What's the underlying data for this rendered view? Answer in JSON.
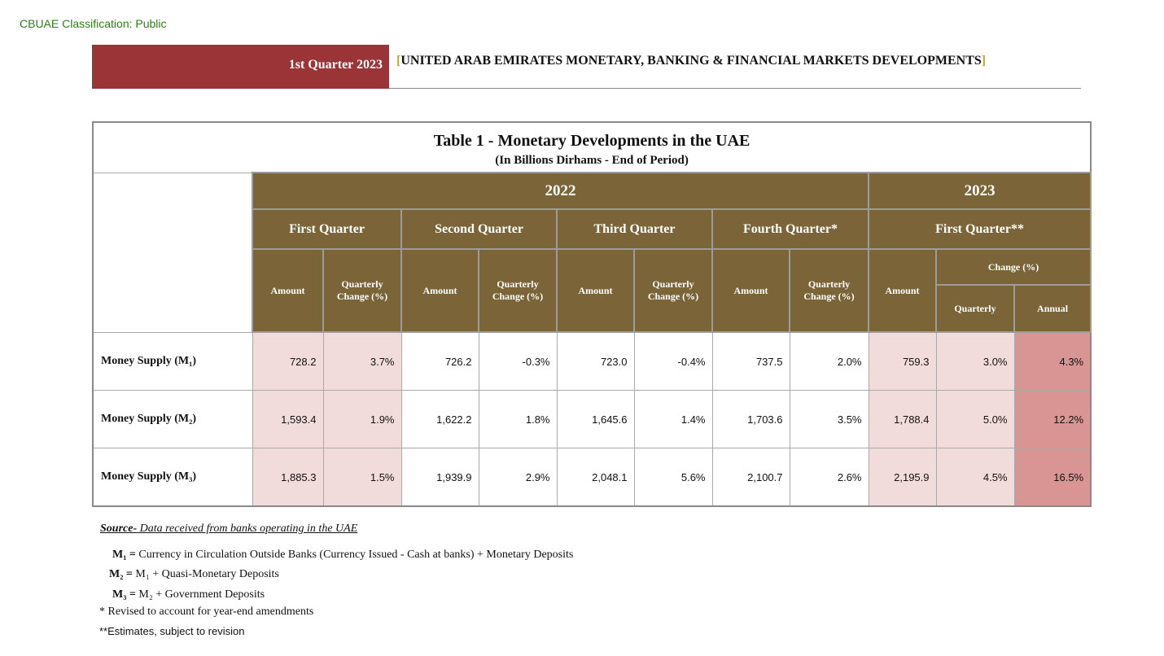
{
  "classification": "CBUAE Classification: Public",
  "header": {
    "quarter": "1st Quarter 2023",
    "bracket_open": "[",
    "title": "UNITED ARAB EMIRATES MONETARY, BANKING & FINANCIAL MARKETS DEVELOPMENTS",
    "bracket_close": "]"
  },
  "colors": {
    "band": "#9a3437",
    "header_fill": "#7b6538",
    "pink": "#f2dcdb",
    "red": "#d99594",
    "classification": "#2e7d1a"
  },
  "table": {
    "title": "Table 1 - Monetary Developments in the UAE",
    "subtitle": "(In Billions Dirhams - End of Period)",
    "years": [
      "2022",
      "2023"
    ],
    "quarters": [
      "First Quarter",
      "Second Quarter",
      "Third Quarter",
      "Fourth Quarter*",
      "First Quarter**"
    ],
    "amount_label": "Amount",
    "qchange_line1": "Quarterly",
    "qchange_line2": "Change (%)",
    "change_pct": "Change (%)",
    "quarterly": "Quarterly",
    "annual": "Annual",
    "rows": [
      {
        "label": "Money Supply (M₁)",
        "values": [
          "728.2",
          "3.7%",
          "726.2",
          "-0.3%",
          "723.0",
          "-0.4%",
          "737.5",
          "2.0%",
          "759.3",
          "3.0%",
          "4.3%"
        ]
      },
      {
        "label": "Money Supply (M₂)",
        "values": [
          "1,593.4",
          "1.9%",
          "1,622.2",
          "1.8%",
          "1,645.6",
          "1.4%",
          "1,703.6",
          "3.5%",
          "1,788.4",
          "5.0%",
          "12.2%"
        ]
      },
      {
        "label": "Money Supply (M₃)",
        "values": [
          "1,885.3",
          "1.5%",
          "1,939.9",
          "2.9%",
          "2,048.1",
          "5.6%",
          "2,100.7",
          "2.6%",
          "2,195.9",
          "4.5%",
          "16.5%"
        ]
      }
    ]
  },
  "notes": {
    "source_label": "Source-",
    "source_text": " Data received from banks operating in the UAE",
    "m1_label": "M₁ = ",
    "m1_text": " Currency in Circulation Outside Banks (Currency Issued - Cash at banks) +  Monetary Deposits",
    "m2_label": "M₂ = ",
    "m2_text": " M₁ + Quasi-Monetary Deposits",
    "m3_label": "M₃ = ",
    "m3_text": " M₂ + Government Deposits",
    "revised": "* Revised to account for year-end amendments",
    "estimates": "**Estimates, subject to revision"
  }
}
